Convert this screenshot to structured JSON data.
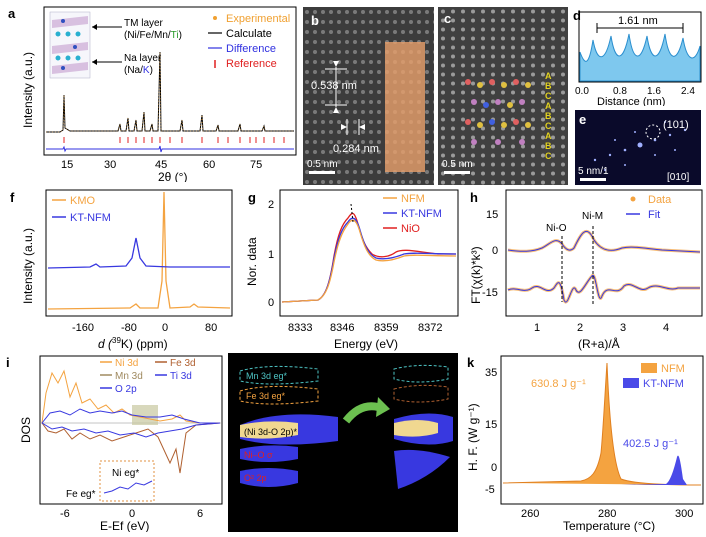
{
  "labels": {
    "a": "a",
    "b": "b",
    "c": "c",
    "d": "d",
    "e": "e",
    "f": "f",
    "g": "g",
    "h": "h",
    "i": "i",
    "j": "",
    "k": "k"
  },
  "colors": {
    "experimental": "#f0a030",
    "calculate": "#000000",
    "difference": "#3030e0",
    "reference": "#e02020",
    "orange": "#f4a340",
    "blue": "#3838e0",
    "red": "#e02020",
    "tem_overlay": "#e9a06c",
    "micro_bg": "#2a2a2a",
    "cyan": "#2bb5e8"
  },
  "panel_a": {
    "inset_tm_line1": "TM layer",
    "inset_tm_line2_prefix": "(Ni/Fe/Mn/",
    "inset_tm_ti": "Ti",
    "inset_tm_close": ")",
    "inset_na_line1": "Na layer",
    "inset_na_line2_prefix": "(Na/",
    "inset_na_k": "K",
    "inset_na_close": ")",
    "ylabel": "Intensity (a.u.)",
    "xlabel": "2θ (°)",
    "xticks": [
      "15",
      "30",
      "45",
      "60",
      "75"
    ],
    "legend": [
      "Experimental",
      "Calculate",
      "Difference",
      "Reference"
    ]
  },
  "panel_b": {
    "d1": "0.538 nm",
    "d2": "0.284 nm",
    "scale": "0.5 nm"
  },
  "panel_c": {
    "scale": "0.5 nm",
    "stacking": [
      "A",
      "B",
      "C",
      "A",
      "B",
      "C",
      "A",
      "B",
      "C"
    ]
  },
  "panel_d": {
    "distance": "1.61 nm",
    "xlabel": "Distance (nm)",
    "xticks": [
      "0.0",
      "0.8",
      "1.6",
      "2.4"
    ]
  },
  "panel_e": {
    "plane": "(101)",
    "scale": "5 nm/1",
    "zone": "[010]"
  },
  "panel_f": {
    "legend": [
      "KMO",
      "KT-NFM"
    ],
    "ylabel": "Intensity (a.u.)",
    "xlabel_pre": "d (",
    "xlabel_sup": "39",
    "xlabel_post": "K) (ppm)",
    "xticks": [
      "-160",
      "-80",
      "0",
      "80"
    ]
  },
  "panel_g": {
    "legend": [
      "NFM",
      "KT-NFM",
      "NiO"
    ],
    "ylabel": "Nor. data",
    "xlabel": "Energy (eV)",
    "yticks": [
      "0",
      "1",
      "2"
    ],
    "xticks": [
      "8333",
      "8346",
      "8359",
      "8372"
    ]
  },
  "panel_h": {
    "legend": [
      "Data",
      "Fit"
    ],
    "ylabel": "FT(χ(k)*k³)",
    "xlabel": "(R+a)/Å",
    "yticks": [
      "15",
      "0",
      "-15"
    ],
    "xticks": [
      "1",
      "2",
      "3",
      "4"
    ],
    "peak1": "Ni-O",
    "peak2": "Ni-M"
  },
  "panel_i": {
    "legend": [
      "Ni 3d",
      "Fe 3d",
      "Mn 3d",
      "Ti 3d",
      "O 2p"
    ],
    "ylabel": "DOS",
    "xlabel": "E-Ef (eV)",
    "xticks": [
      "-6",
      "0",
      "6"
    ],
    "ni_eg": "Ni eg*",
    "fe_eg": "Fe eg*"
  },
  "panel_j": {
    "mn_label": "Mn 3d eg*",
    "fe_label": "Fe 3d eg*",
    "ni_o_label": "(Ni 3d-O 2p)*",
    "o_label1": "Ni–O σ",
    "o_label2": "O² 2p"
  },
  "panel_k": {
    "legend": [
      "NFM",
      "KT-NFM"
    ],
    "ylabel": "H. F. (W g⁻¹)",
    "xlabel": "Temperature (°C)",
    "yticks": [
      "35",
      "15",
      "0",
      "-5"
    ],
    "xticks": [
      "260",
      "280",
      "300"
    ],
    "ann1": "630.8 J g⁻¹",
    "ann2": "402.5 J g⁻¹"
  }
}
